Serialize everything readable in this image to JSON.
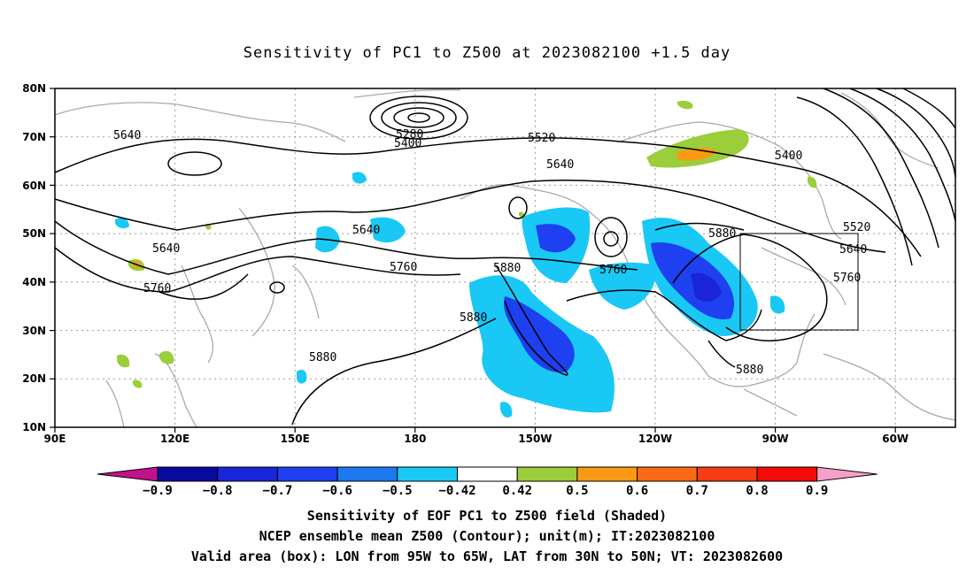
{
  "title": "Sensitivity of PC1 to Z500 at 2023082100 +1.5 day",
  "axes": {
    "lon_labels": [
      "90E",
      "120E",
      "150E",
      "180",
      "150W",
      "120W",
      "90W",
      "60W"
    ],
    "lat_labels": [
      "80N",
      "70N",
      "60N",
      "50N",
      "40N",
      "30N",
      "20N",
      "10N"
    ]
  },
  "contour_labels": [
    "5640",
    "5280",
    "5400",
    "5520",
    "5640",
    "5400",
    "5640",
    "5640",
    "5760",
    "5760",
    "5880",
    "5760",
    "5880",
    "5880",
    "5520",
    "5640",
    "5760",
    "5880",
    "5880"
  ],
  "valid_box": {
    "lon_from": "95W",
    "lon_to": "65W",
    "lat_from": "30N",
    "lat_to": "50N"
  },
  "colorbar": {
    "labels": [
      "-0.9",
      "-0.8",
      "-0.7",
      "-0.6",
      "-0.5",
      "-0.42",
      "0.42",
      "0.5",
      "0.6",
      "0.7",
      "0.8",
      "0.9"
    ],
    "colors": [
      "#0a0aa0",
      "#1a24d8",
      "#1e40f0",
      "#1e78f0",
      "#19c8f5",
      "#ffffff",
      "#9ccd3a",
      "#fa9a14",
      "#fa6a14",
      "#f53c14",
      "#f50a0a"
    ],
    "low_cap": "#c0128c",
    "high_cap": "#f5a0c8"
  },
  "captions": {
    "line1": "Sensitivity of EOF PC1 to Z500 field (Shaded)",
    "line2": "NCEP ensemble mean Z500 (Contour); unit(m); IT:2023082100",
    "line3": "Valid area (box): LON from 95W to 65W, LAT from 30N to 50N; VT: 2023082600"
  }
}
